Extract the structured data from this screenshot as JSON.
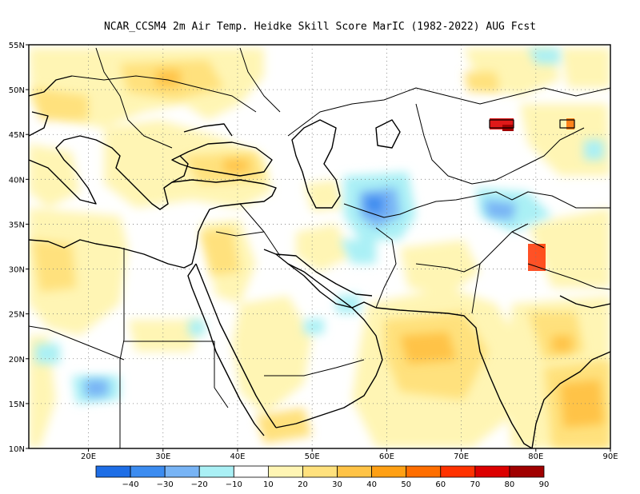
{
  "title": "NCAR_CCSM4  2m Air Temp. Heidke Skill Score MarIC (1982-2022) AUG Fcst",
  "map": {
    "region": "Middle East / Central Asia",
    "lon_range": [
      12,
      90
    ],
    "lat_range": [
      10,
      55
    ],
    "lat_ticks": [
      "10N",
      "15N",
      "20N",
      "25N",
      "30N",
      "35N",
      "40N",
      "45N",
      "50N",
      "55N"
    ],
    "lon_ticks": [
      "20E",
      "30E",
      "40E",
      "50E",
      "60E",
      "70E",
      "80E",
      "90E"
    ],
    "grid": "dotted"
  },
  "colorbar": {
    "labels": [
      "-40",
      "-30",
      "-20",
      "-10",
      "10",
      "20",
      "30",
      "40",
      "50",
      "60",
      "70",
      "80",
      "90"
    ],
    "colors": [
      "#1e6ee6",
      "#3c8cf0",
      "#78b4f5",
      "#aaf0f5",
      "#ffffff",
      "#fff5b4",
      "#ffe17d",
      "#ffc346",
      "#ffa014",
      "#ff6e00",
      "#ff3200",
      "#dc0000",
      "#a00000"
    ]
  },
  "chart_data": {
    "type": "heatmap",
    "title": "NCAR_CCSM4  2m Air Temp. Heidke Skill Score MarIC (1982-2022) AUG Fcst",
    "x_axis": "longitude",
    "y_axis": "latitude",
    "xlim": [
      12,
      90
    ],
    "ylim": [
      10,
      55
    ],
    "grid": true,
    "notable_regions": [
      {
        "lon": 57,
        "lat": 37,
        "value": -30
      },
      {
        "lon": 73,
        "lat": 35.5,
        "value": -30
      },
      {
        "lon": 21,
        "lat": 16.5,
        "value": -20
      },
      {
        "lon": 31,
        "lat": 52,
        "value": 30
      },
      {
        "lon": 87,
        "lat": 15,
        "value": 40
      },
      {
        "lon": 68,
        "lat": 21,
        "value": 30
      },
      {
        "lon": 48,
        "lat": 12,
        "value": 30
      },
      {
        "lon": 82,
        "lat": 46.5,
        "value": 70
      },
      {
        "lon": 80,
        "lat": 31,
        "value": 60
      }
    ]
  }
}
